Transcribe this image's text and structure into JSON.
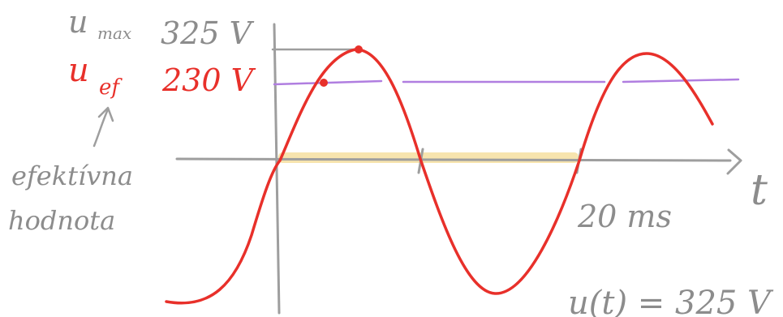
{
  "labels": {
    "umax_symbol": "u",
    "umax_sub": "max",
    "umax_value": "325 V",
    "uef_symbol": "u",
    "uef_sub": "ef",
    "uef_value": "230 V",
    "effective_line1": "efektívna",
    "effective_line2": "hodnota",
    "axis_t": "t",
    "period": "20 ms",
    "formula": "u(t) = 325 V"
  },
  "colors": {
    "wave": "#e8302a",
    "effective_line": "#b07ee0",
    "axes": "#9e9e9e",
    "handwriting": "#8c8c8c",
    "highlight": "#f6dfa0",
    "umax_label": "#8c8c8c",
    "uef_label": "#e8302a"
  },
  "chart_data": {
    "type": "line",
    "series": [
      {
        "values_description": "sine",
        "amplitude": 325,
        "effective": 230,
        "period_ms": 20
      }
    ]
  }
}
